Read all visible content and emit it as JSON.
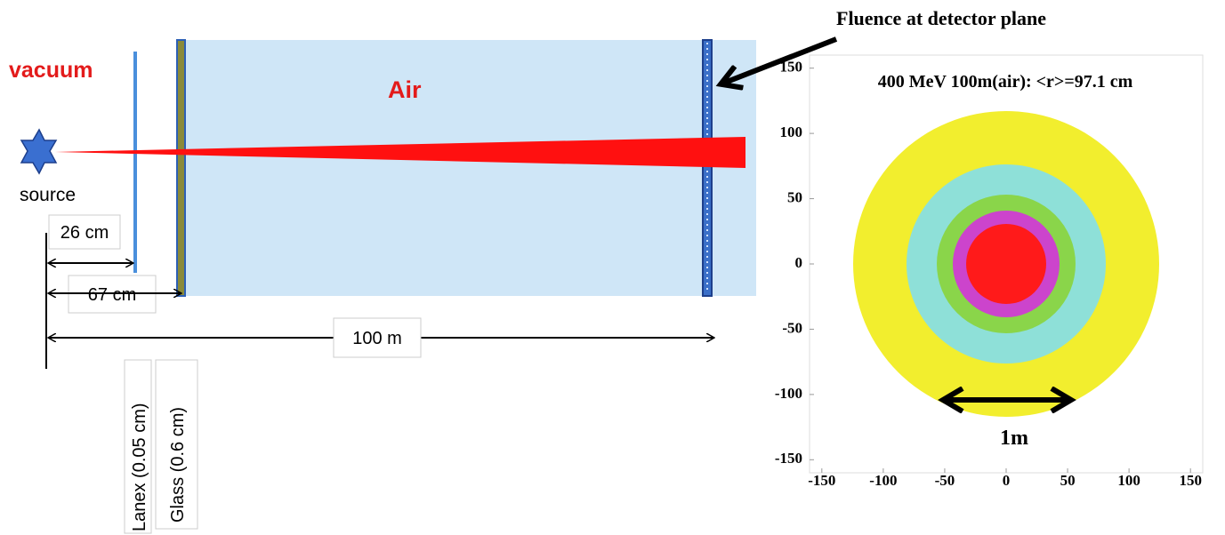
{
  "labels": {
    "vacuum": "vacuum",
    "air": "Air",
    "source": "source",
    "lanex": "Lanex (0.05 cm)",
    "glass": "Glass (0.6 cm)"
  },
  "dimensions": {
    "lanex_distance": "26 cm",
    "glass_distance": "67 cm",
    "detector_distance": "100 m"
  },
  "fluence_plot": {
    "title": "Fluence at detector plane",
    "subtitle": "400 MeV 100m(air): <r>=97.1 cm",
    "scale_bar": "1m",
    "xlim": [
      -160,
      160
    ],
    "ylim": [
      -160,
      160
    ],
    "xticks": [
      -150,
      -100,
      -50,
      0,
      50,
      100,
      150
    ],
    "yticks": [
      -150,
      -100,
      -50,
      0,
      50,
      100,
      150
    ]
  }
}
